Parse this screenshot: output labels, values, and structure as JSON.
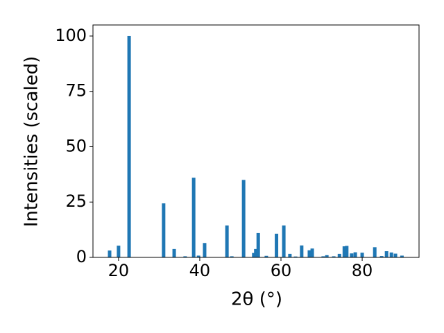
{
  "chart_data": {
    "type": "bar",
    "x_label": "2θ (°)",
    "y_label": "Intensities (scaled)",
    "x": [
      17.8,
      20.0,
      22.6,
      31.1,
      33.7,
      36.4,
      38.5,
      39.7,
      41.2,
      46.7,
      47.9,
      50.8,
      53.3,
      53.8,
      54.4,
      56.4,
      58.9,
      60.7,
      62.2,
      63.6,
      65.1,
      67.0,
      67.7,
      70.4,
      71.3,
      73.0,
      74.4,
      75.6,
      76.2,
      77.4,
      78.3,
      80.0,
      83.1,
      84.8,
      86.0,
      87.2,
      88.2,
      89.8
    ],
    "values": [
      3.1,
      5.3,
      100,
      24.4,
      3.8,
      0.5,
      36,
      0.8,
      6.5,
      14.4,
      0.5,
      35,
      2,
      3.8,
      11,
      0.7,
      10.7,
      14.4,
      1.6,
      0.4,
      5.4,
      3.2,
      4,
      0.5,
      1,
      0.5,
      1.6,
      5,
      5.2,
      1.8,
      2.3,
      2.1,
      4.6,
      0.6,
      2.8,
      2.2,
      1.7,
      0.8
    ],
    "color": "#1f77b4",
    "xlim": [
      13.7,
      94.0
    ],
    "ylim": [
      0,
      105
    ],
    "xticks": [
      20,
      40,
      60,
      80
    ],
    "yticks": [
      0,
      25,
      50,
      75,
      100
    ]
  }
}
